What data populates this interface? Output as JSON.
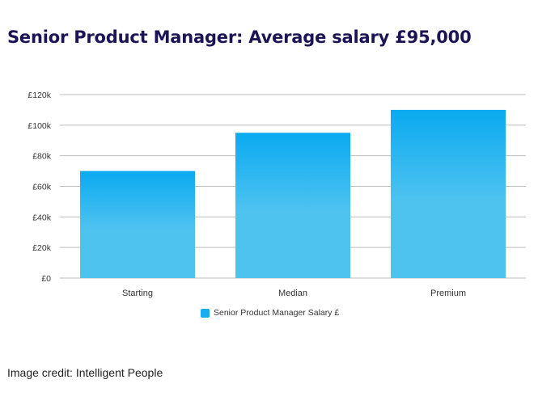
{
  "title": "Senior Product Manager: Average salary £95,000",
  "credit": "Image credit: Intelligent People",
  "colors": {
    "bar_top": "#0aaaf0",
    "bar_bottom": "#4fc3f0",
    "grid": "#bdbdbd",
    "title": "#1c1454"
  },
  "chart_data": {
    "type": "bar",
    "title": "",
    "xlabel": "",
    "ylabel": "",
    "categories": [
      "Starting",
      "Median",
      "Premium"
    ],
    "series": [
      {
        "name": "Senior Product Manager Salary £",
        "values": [
          70000,
          95000,
          110000
        ]
      }
    ],
    "ylim": [
      0,
      120000
    ],
    "yticks": [
      0,
      20000,
      40000,
      60000,
      80000,
      100000,
      120000
    ],
    "ytick_labels": [
      "£0",
      "£20k",
      "£40k",
      "£60k",
      "£80k",
      "£100k",
      "£120k"
    ],
    "grid": true,
    "legend_position": "bottom-center"
  }
}
